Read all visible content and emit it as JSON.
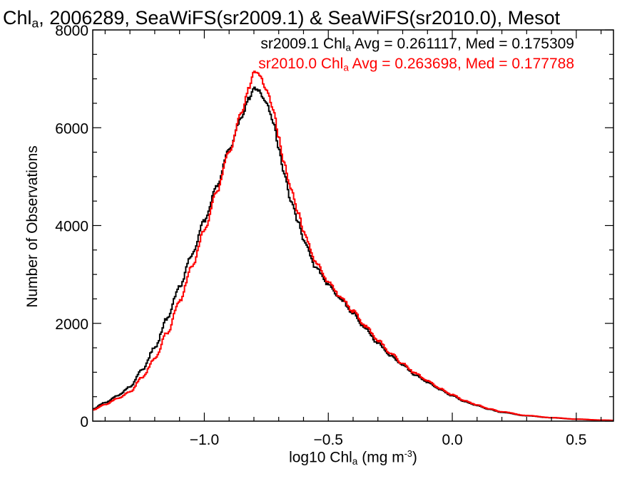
{
  "title": {
    "prefix": "Chl",
    "prefix_sub": "a",
    "rest": ", 2006289, SeaWiFS(sr2009.1) & SeaWiFS(sr2010.0), Mesot"
  },
  "legend": [
    {
      "pre": "sr2009.1 Chl",
      "sub": "a",
      "post": " Avg = 0.261117, Med = 0.175309",
      "color": "#000000"
    },
    {
      "pre": "sr2010.0 Chl",
      "sub": "a",
      "post": " Avg = 0.263698, Med = 0.177788",
      "color": "#ff0000"
    }
  ],
  "axes": {
    "xlabel": {
      "pre": "log10 Chl",
      "sub": "a",
      "post": " (mg m",
      "sup": "-3",
      "end": ")"
    },
    "ylabel": "Number of Observations"
  },
  "chart_data": {
    "type": "line",
    "xlim": [
      -1.45,
      0.65
    ],
    "ylim": [
      0,
      8000
    ],
    "grid": false,
    "xticks": [
      -1.0,
      -0.5,
      0.0,
      0.5
    ],
    "xtick_labels": [
      "−1.0",
      "−0.5",
      "0.0",
      "0.5"
    ],
    "yticks": [
      0,
      2000,
      4000,
      6000,
      8000
    ],
    "ytick_labels": [
      "0",
      "2000",
      "4000",
      "6000",
      "8000"
    ],
    "series": [
      {
        "name": "sr2009.1",
        "color": "#000000",
        "x": [
          -1.45,
          -1.4,
          -1.35,
          -1.3,
          -1.25,
          -1.2,
          -1.15,
          -1.1,
          -1.05,
          -1.0,
          -0.95,
          -0.9,
          -0.85,
          -0.82,
          -0.8,
          -0.78,
          -0.75,
          -0.72,
          -0.7,
          -0.68,
          -0.65,
          -0.62,
          -0.6,
          -0.55,
          -0.5,
          -0.45,
          -0.4,
          -0.35,
          -0.3,
          -0.25,
          -0.2,
          -0.15,
          -0.1,
          -0.05,
          0.0,
          0.05,
          0.1,
          0.15,
          0.2,
          0.3,
          0.4,
          0.5,
          0.6,
          0.65
        ],
        "y": [
          250,
          380,
          520,
          700,
          1050,
          1500,
          2100,
          2750,
          3400,
          4100,
          4800,
          5550,
          6200,
          6600,
          6800,
          6750,
          6500,
          6100,
          5600,
          5100,
          4500,
          4050,
          3700,
          3150,
          2800,
          2500,
          2200,
          1900,
          1600,
          1350,
          1150,
          950,
          800,
          650,
          520,
          400,
          320,
          240,
          180,
          110,
          70,
          40,
          20,
          15
        ]
      },
      {
        "name": "sr2010.0",
        "color": "#ff0000",
        "x": [
          -1.45,
          -1.4,
          -1.35,
          -1.3,
          -1.25,
          -1.2,
          -1.15,
          -1.1,
          -1.05,
          -1.0,
          -0.95,
          -0.9,
          -0.85,
          -0.82,
          -0.8,
          -0.78,
          -0.75,
          -0.72,
          -0.7,
          -0.68,
          -0.65,
          -0.62,
          -0.6,
          -0.55,
          -0.5,
          -0.45,
          -0.4,
          -0.35,
          -0.3,
          -0.25,
          -0.2,
          -0.15,
          -0.1,
          -0.05,
          0.0,
          0.05,
          0.1,
          0.15,
          0.2,
          0.3,
          0.4,
          0.5,
          0.6,
          0.65
        ],
        "y": [
          230,
          340,
          460,
          600,
          900,
          1280,
          1800,
          2450,
          3150,
          3900,
          4700,
          5500,
          6300,
          6800,
          7150,
          7100,
          6800,
          6350,
          5800,
          5300,
          4750,
          4250,
          3850,
          3250,
          2850,
          2550,
          2250,
          1950,
          1650,
          1400,
          1180,
          980,
          820,
          670,
          540,
          420,
          330,
          250,
          190,
          115,
          72,
          42,
          22,
          15
        ]
      }
    ]
  }
}
